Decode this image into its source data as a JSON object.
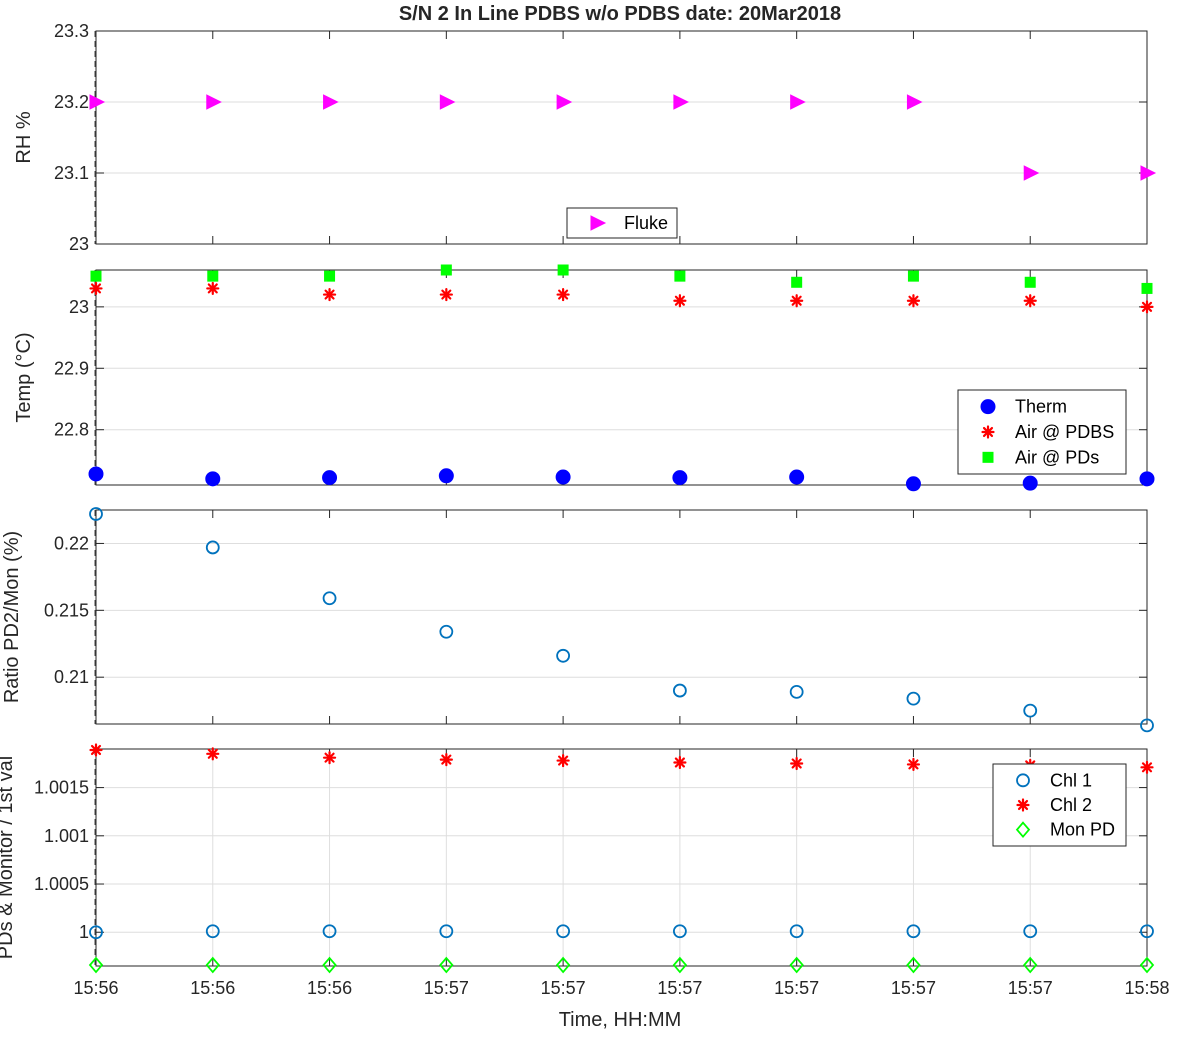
{
  "chart_data": {
    "type": "scatter",
    "title": "S/N 2 In Line PDBS w/o PDBS date: 20Mar2018",
    "xlabel": "Time, HH:MM",
    "x_tick_labels": [
      "15:56",
      "15:56",
      "15:56",
      "15:57",
      "15:57",
      "15:57",
      "15:57",
      "15:57",
      "15:57",
      "15:58"
    ],
    "panels": [
      {
        "ylabel": "RH %",
        "ylim": [
          23.0,
          23.3
        ],
        "yticks": [
          23,
          23.1,
          23.2,
          23.3
        ],
        "ytick_labels": [
          "23",
          "23.1",
          "23.2",
          "23.3"
        ],
        "grid": "y",
        "legend_loc": "bottom-center",
        "series": [
          {
            "name": "Fluke",
            "marker": "triangle-right",
            "color": "#ff00ff",
            "values": [
              23.2,
              23.2,
              23.2,
              23.2,
              23.2,
              23.2,
              23.2,
              23.2,
              23.1,
              23.1
            ]
          }
        ]
      },
      {
        "ylabel": "Temp (°C)",
        "ylim": [
          22.71,
          23.06
        ],
        "yticks": [
          22.8,
          22.9,
          23.0
        ],
        "ytick_labels": [
          "22.8",
          "22.9",
          "23"
        ],
        "grid": "y",
        "legend_loc": "lower-right",
        "series": [
          {
            "name": "Therm",
            "marker": "circle-filled",
            "color": "#0000ff",
            "values": [
              22.728,
              22.72,
              22.722,
              22.725,
              22.723,
              22.722,
              22.723,
              22.712,
              22.713,
              22.72
            ]
          },
          {
            "name": "Air @ PDBS",
            "marker": "asterisk",
            "color": "#ff0000",
            "values": [
              23.03,
              23.03,
              23.02,
              23.02,
              23.02,
              23.01,
              23.01,
              23.01,
              23.01,
              23.0
            ]
          },
          {
            "name": "Air @ PDs",
            "marker": "square-filled",
            "color": "#00ff00",
            "values": [
              23.05,
              23.05,
              23.05,
              23.06,
              23.06,
              23.05,
              23.04,
              23.05,
              23.04,
              23.03
            ]
          }
        ]
      },
      {
        "ylabel": "Ratio PD2/Mon (%)",
        "ylim": [
          0.2065,
          0.2225
        ],
        "yticks": [
          0.21,
          0.215,
          0.22
        ],
        "ytick_labels": [
          "0.21",
          "0.215",
          "0.22"
        ],
        "grid": "y",
        "series": [
          {
            "name": "",
            "marker": "circle-open",
            "color": "#0072bd",
            "values": [
              0.2222,
              0.2197,
              0.2159,
              0.2134,
              0.2116,
              0.209,
              0.2089,
              0.2084,
              0.2075,
              0.2064
            ]
          }
        ]
      },
      {
        "ylabel": "PDs & Monitor / 1st val",
        "ylim": [
          0.99965,
          1.0019
        ],
        "yticks": [
          1.0,
          1.0005,
          1.001,
          1.0015
        ],
        "ytick_labels": [
          "1",
          "1.0005",
          "1.001",
          "1.0015"
        ],
        "grid": "both",
        "legend_loc": "top-right",
        "series": [
          {
            "name": "Chl 1",
            "marker": "circle-open",
            "color": "#0072bd",
            "values": [
              1.0,
              1.00001,
              1.00001,
              1.00001,
              1.00001,
              1.00001,
              1.00001,
              1.00001,
              1.00001,
              1.00001
            ]
          },
          {
            "name": "Chl 2",
            "marker": "asterisk",
            "color": "#ff0000",
            "values": [
              1.00189,
              1.00185,
              1.00181,
              1.00179,
              1.00178,
              1.00176,
              1.00175,
              1.00174,
              1.00173,
              1.00171
            ]
          },
          {
            "name": "Mon PD",
            "marker": "diamond-open",
            "color": "#00ff00",
            "values": [
              0.99966,
              0.99966,
              0.99966,
              0.99966,
              0.99966,
              0.99966,
              0.99966,
              0.99966,
              0.99966,
              0.99966
            ]
          }
        ]
      }
    ]
  }
}
